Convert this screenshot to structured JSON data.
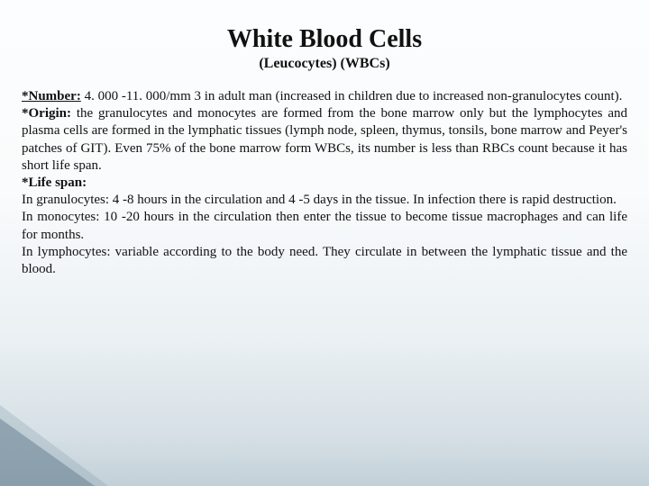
{
  "title": "White Blood Cells",
  "subtitle": "(Leucocytes) (WBCs)",
  "number_label": "*Number:",
  "number_text": " 4. 000 -11. 000/mm 3 in adult man (increased in children due to increased non-granulocytes count).",
  "origin_label": "*Origin:",
  "origin_text": " the granulocytes and monocytes are formed from the bone marrow only  but the lymphocytes and plasma cells are formed in the lymphatic tissues (lymph node, spleen, thymus, tonsils, bone marrow and  Peyer's patches of GIT). Even 75% of the bone marrow form WBCs, its number is less than RBCs count because it has short life span.",
  "lifespan_label": "*Life span:",
  "lifespan_g": "In granulocytes: 4 -8 hours in the circulation and 4 -5 days in the tissue. In infection there is rapid destruction.",
  "lifespan_m": "In monocytes: 10 -20 hours in the circulation then enter the tissue to become tissue macrophages and can life for months.",
  "lifespan_l": "In lymphocytes:  variable according to the body need. They circulate in between the lymphatic tissue and the blood."
}
